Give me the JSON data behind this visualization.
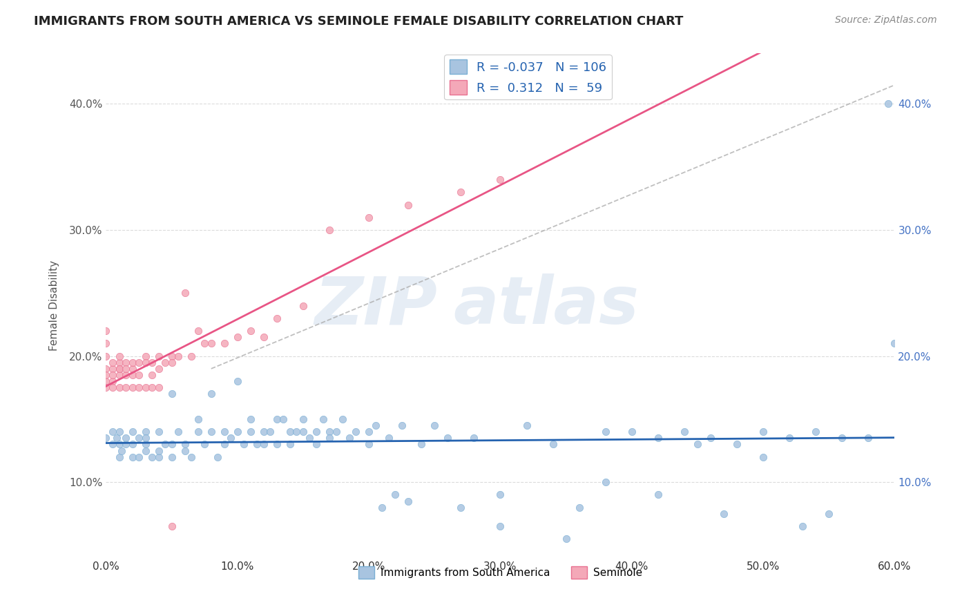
{
  "title": "IMMIGRANTS FROM SOUTH AMERICA VS SEMINOLE FEMALE DISABILITY CORRELATION CHART",
  "source": "Source: ZipAtlas.com",
  "ylabel": "Female Disability",
  "xlim": [
    0.0,
    0.6
  ],
  "ylim": [
    0.04,
    0.44
  ],
  "xtick_labels": [
    "0.0%",
    "10.0%",
    "20.0%",
    "30.0%",
    "40.0%",
    "50.0%",
    "60.0%"
  ],
  "xtick_vals": [
    0.0,
    0.1,
    0.2,
    0.3,
    0.4,
    0.5,
    0.6
  ],
  "ytick_labels": [
    "10.0%",
    "20.0%",
    "30.0%",
    "40.0%"
  ],
  "ytick_vals": [
    0.1,
    0.2,
    0.3,
    0.4
  ],
  "background_color": "#ffffff",
  "grid_color": "#cccccc",
  "legend_R1": "-0.037",
  "legend_N1": "106",
  "legend_R2": "0.312",
  "legend_N2": "59",
  "series1_color": "#a8c4e0",
  "series1_edge": "#7aafd4",
  "series2_color": "#f4a8b8",
  "series2_edge": "#e87090",
  "trendline1_color": "#2563b0",
  "trendline2_color": "#e85585",
  "trendline_dashed_color": "#aaaaaa",
  "series1_label": "Immigrants from South America",
  "series2_label": "Seminole",
  "scatter1_x": [
    0.0,
    0.005,
    0.005,
    0.008,
    0.01,
    0.01,
    0.01,
    0.012,
    0.015,
    0.015,
    0.02,
    0.02,
    0.02,
    0.025,
    0.025,
    0.03,
    0.03,
    0.03,
    0.03,
    0.035,
    0.04,
    0.04,
    0.04,
    0.045,
    0.05,
    0.05,
    0.05,
    0.055,
    0.06,
    0.06,
    0.065,
    0.07,
    0.07,
    0.075,
    0.08,
    0.08,
    0.085,
    0.09,
    0.09,
    0.095,
    0.1,
    0.1,
    0.105,
    0.11,
    0.11,
    0.115,
    0.12,
    0.12,
    0.125,
    0.13,
    0.13,
    0.135,
    0.14,
    0.14,
    0.145,
    0.15,
    0.15,
    0.155,
    0.16,
    0.16,
    0.165,
    0.17,
    0.17,
    0.175,
    0.18,
    0.185,
    0.19,
    0.2,
    0.2,
    0.205,
    0.21,
    0.215,
    0.22,
    0.225,
    0.23,
    0.24,
    0.25,
    0.26,
    0.27,
    0.28,
    0.3,
    0.32,
    0.34,
    0.36,
    0.38,
    0.4,
    0.42,
    0.44,
    0.46,
    0.48,
    0.5,
    0.52,
    0.54,
    0.56,
    0.58,
    0.595,
    0.6,
    0.45,
    0.5,
    0.55,
    0.3,
    0.35,
    0.38,
    0.42,
    0.47,
    0.53
  ],
  "scatter1_y": [
    0.135,
    0.14,
    0.13,
    0.135,
    0.12,
    0.13,
    0.14,
    0.125,
    0.13,
    0.135,
    0.14,
    0.12,
    0.13,
    0.135,
    0.12,
    0.125,
    0.14,
    0.13,
    0.135,
    0.12,
    0.12,
    0.125,
    0.14,
    0.13,
    0.12,
    0.17,
    0.13,
    0.14,
    0.125,
    0.13,
    0.12,
    0.15,
    0.14,
    0.13,
    0.17,
    0.14,
    0.12,
    0.14,
    0.13,
    0.135,
    0.18,
    0.14,
    0.13,
    0.14,
    0.15,
    0.13,
    0.13,
    0.14,
    0.14,
    0.13,
    0.15,
    0.15,
    0.14,
    0.13,
    0.14,
    0.15,
    0.14,
    0.135,
    0.13,
    0.14,
    0.15,
    0.14,
    0.135,
    0.14,
    0.15,
    0.135,
    0.14,
    0.14,
    0.13,
    0.145,
    0.08,
    0.135,
    0.09,
    0.145,
    0.085,
    0.13,
    0.145,
    0.135,
    0.08,
    0.135,
    0.09,
    0.145,
    0.13,
    0.08,
    0.14,
    0.14,
    0.135,
    0.14,
    0.135,
    0.13,
    0.14,
    0.135,
    0.14,
    0.135,
    0.135,
    0.4,
    0.21,
    0.13,
    0.12,
    0.075,
    0.065,
    0.055,
    0.1,
    0.09,
    0.075,
    0.065
  ],
  "scatter2_x": [
    0.0,
    0.0,
    0.0,
    0.0,
    0.0,
    0.0,
    0.0,
    0.005,
    0.005,
    0.005,
    0.005,
    0.01,
    0.01,
    0.01,
    0.01,
    0.01,
    0.015,
    0.015,
    0.015,
    0.02,
    0.02,
    0.02,
    0.025,
    0.025,
    0.03,
    0.03,
    0.035,
    0.035,
    0.04,
    0.04,
    0.045,
    0.05,
    0.05,
    0.055,
    0.06,
    0.065,
    0.07,
    0.075,
    0.08,
    0.09,
    0.1,
    0.11,
    0.12,
    0.13,
    0.15,
    0.17,
    0.2,
    0.23,
    0.27,
    0.3,
    0.005,
    0.01,
    0.015,
    0.02,
    0.025,
    0.03,
    0.035,
    0.04,
    0.05
  ],
  "scatter2_y": [
    0.19,
    0.18,
    0.2,
    0.21,
    0.22,
    0.185,
    0.175,
    0.19,
    0.195,
    0.18,
    0.185,
    0.19,
    0.195,
    0.185,
    0.19,
    0.2,
    0.195,
    0.185,
    0.19,
    0.19,
    0.195,
    0.185,
    0.195,
    0.185,
    0.2,
    0.195,
    0.195,
    0.185,
    0.2,
    0.19,
    0.195,
    0.2,
    0.195,
    0.2,
    0.25,
    0.2,
    0.22,
    0.21,
    0.21,
    0.21,
    0.215,
    0.22,
    0.215,
    0.23,
    0.24,
    0.3,
    0.31,
    0.32,
    0.33,
    0.34,
    0.175,
    0.175,
    0.175,
    0.175,
    0.175,
    0.175,
    0.175,
    0.175,
    0.065
  ]
}
